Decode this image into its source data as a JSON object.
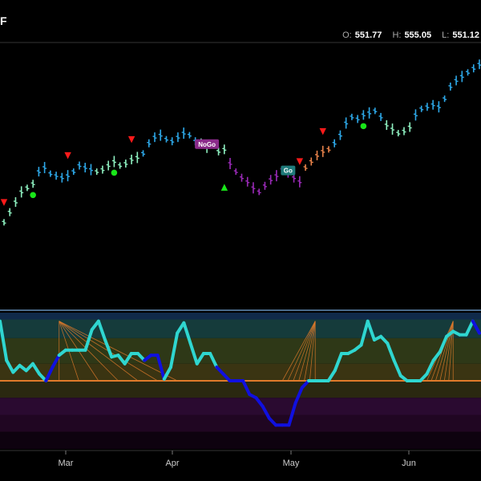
{
  "ticker_fragment": "F",
  "ohlc": {
    "o_label": "O:",
    "o_value": "551.77",
    "h_label": "H:",
    "h_value": "555.05",
    "l_label": "L:",
    "l_value": "551.12"
  },
  "colors": {
    "bright_blue": "#2da8e8",
    "cyan": "#4dd0e1",
    "light_green": "#8ef0c0",
    "pink": "#e878e8",
    "purple": "#9b2ab8",
    "orange": "#e8824a",
    "red_marker": "#ff1a1a",
    "green_marker": "#19e619",
    "osc_cyan": "#2fd6d0",
    "osc_blue": "#1010e0",
    "osc_orange": "#e07a2a"
  },
  "chart_data": [
    {
      "type": "ohlc",
      "title": "",
      "xlabel": "",
      "ylabel": "",
      "x_ticks": [
        "Mar",
        "Apr",
        "May",
        "Jun"
      ],
      "grid": false,
      "legend": "none",
      "series": [
        {
          "name": "",
          "values": [
            {
              "segment": "start",
              "trend": "light_green",
              "y": [
                469,
                474,
                479,
                484,
                486,
                488
              ]
            },
            {
              "segment": "rise_1",
              "trend": "bright_blue",
              "y": [
                494,
                496,
                493,
                492,
                491,
                492,
                494,
                497,
                496,
                495
              ]
            },
            {
              "segment": "mix_1",
              "trend": "light_green",
              "y": [
                494,
                495,
                497,
                499,
                497,
                498,
                500,
                501
              ]
            },
            {
              "segment": "rise_2",
              "trend": "bright_blue",
              "y": [
                503,
                508,
                511,
                512,
                510,
                509,
                511,
                513,
                512,
                509
              ]
            },
            {
              "segment": "mix_2",
              "trend": "light_green",
              "y": [
                508,
                506,
                507,
                504,
                505
              ]
            },
            {
              "segment": "pullback",
              "trend": "purple",
              "y": [
                498,
                494,
                491,
                489,
                486,
                484,
                487,
                490,
                492,
                495,
                493,
                491,
                489
              ]
            },
            {
              "segment": "recover",
              "trend": "orange",
              "y": [
                496,
                499,
                502,
                504,
                505
              ]
            },
            {
              "segment": "rise_3",
              "trend": "bright_blue",
              "y": [
                508,
                512,
                518,
                521,
                520,
                522,
                523,
                524,
                521
              ]
            },
            {
              "segment": "mix_3",
              "trend": "light_green",
              "y": [
                517,
                515,
                513,
                514,
                516
              ]
            },
            {
              "segment": "rise_4",
              "trend": "bright_blue",
              "y": [
                522,
                525,
                526,
                527,
                526,
                530,
                536,
                539,
                541,
                543,
                545,
                547
              ]
            }
          ]
        }
      ],
      "annotations": [
        {
          "kind": "sell",
          "symbol": "▼",
          "index": 0
        },
        {
          "kind": "sell",
          "symbol": "▼",
          "index": 11
        },
        {
          "kind": "sell",
          "symbol": "▼",
          "index": 22
        },
        {
          "kind": "sell",
          "symbol": "▼",
          "index": 51
        },
        {
          "kind": "sell",
          "symbol": "▼",
          "index": 55
        },
        {
          "kind": "buy",
          "symbol": "▲",
          "index": 38
        },
        {
          "kind": "dot",
          "symbol": "●",
          "index": 5
        },
        {
          "kind": "dot",
          "symbol": "●",
          "index": 19
        },
        {
          "kind": "dot",
          "symbol": "●",
          "index": 62
        },
        {
          "kind": "label",
          "text": "NoGo",
          "index": 35
        },
        {
          "kind": "label",
          "text": "Go",
          "index": 49
        }
      ]
    },
    {
      "type": "line",
      "title": "",
      "ylim": [
        -4,
        4
      ],
      "zero_line": 0,
      "series": [
        {
          "name": "",
          "values": [
            3.5,
            1.2,
            0.5,
            0.9,
            0.6,
            1.0,
            0.4,
            0.0,
            0.8,
            1.5,
            1.8,
            1.8,
            1.8,
            1.8,
            3.0,
            3.5,
            2.4,
            1.4,
            1.5,
            1.0,
            1.6,
            1.6,
            1.2,
            1.5,
            1.5,
            0.1,
            0.8,
            2.8,
            3.4,
            2.2,
            1.0,
            1.6,
            1.6,
            0.8,
            0.4,
            0.0,
            0.0,
            0.0,
            -0.8,
            -1.0,
            -1.5,
            -2.2,
            -2.6,
            -2.6,
            -2.6,
            -1.3,
            -0.4,
            0.0,
            0.0,
            0.0,
            0.0,
            0.6,
            1.6,
            1.6,
            1.8,
            2.1,
            3.5,
            2.4,
            2.6,
            2.2,
            1.2,
            0.3,
            0.0,
            0.0,
            0.0,
            0.4,
            1.2,
            1.7,
            2.6,
            2.9,
            2.7,
            2.7,
            3.5,
            2.8
          ]
        }
      ],
      "bands": [
        {
          "from": 3.6,
          "to": 4.0,
          "color": "#102a4a"
        },
        {
          "from": 2.5,
          "to": 3.6,
          "color": "#153b3b"
        },
        {
          "from": 1.0,
          "to": 2.5,
          "color": "#2e3817"
        },
        {
          "from": 0.0,
          "to": 1.0,
          "color": "#3a3412"
        },
        {
          "from": -1.0,
          "to": 0.0,
          "color": "#2a2810"
        },
        {
          "from": -2.0,
          "to": -1.0,
          "color": "#2a0a30"
        },
        {
          "from": -3.0,
          "to": -2.0,
          "color": "#200622"
        },
        {
          "from": -4.0,
          "to": -3.0,
          "color": "#0e020f"
        }
      ]
    }
  ]
}
